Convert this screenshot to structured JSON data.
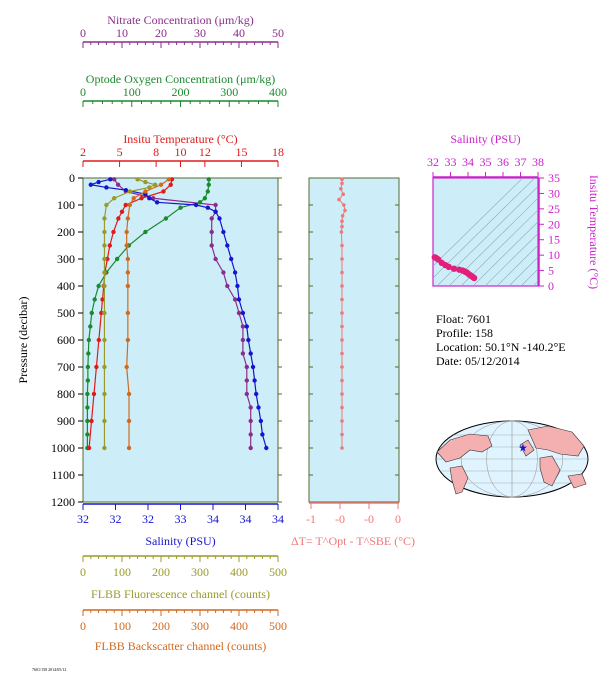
{
  "colors": {
    "panel_bg": "#cdeef8",
    "nitrate": "#8b2e8b",
    "oxygen": "#1b8a2e",
    "temperature": "#e01a1a",
    "salinity": "#1515d0",
    "fluorescence": "#9a9a2a",
    "backscatter": "#d2691e",
    "delta_t": "#f07878",
    "ts_axis": "#cc22cc",
    "ts_points": "#e0207a",
    "grid_dark": "#777777",
    "land": "#f4b0b0",
    "ocean": "#e0f4ff",
    "frame": "#556b2f"
  },
  "chart_data": [
    {
      "type": "line",
      "name": "main-profile",
      "ylabel": "Pressure (decibar)",
      "ylim": [
        1200,
        0
      ],
      "yticks": [
        "0",
        "100",
        "200",
        "300",
        "400",
        "500",
        "600",
        "700",
        "800",
        "900",
        "1000",
        "1100",
        "1200"
      ],
      "axes": {
        "nitrate": {
          "label": "Nitrate Concentration (μm/kg)",
          "range": [
            0,
            50
          ],
          "ticks": [
            "0",
            "10",
            "20",
            "30",
            "40",
            "50"
          ]
        },
        "oxygen": {
          "label": "Optode Oxygen Concentration (μm/kg)",
          "range": [
            0,
            400
          ],
          "ticks": [
            "0",
            "100",
            "200",
            "300",
            "400"
          ]
        },
        "temperature": {
          "label": "Insitu Temperature (°C)",
          "range": [
            2,
            18
          ],
          "ticks": [
            "2",
            "5",
            "8",
            "10",
            "12",
            "15",
            "18"
          ]
        },
        "salinity": {
          "label": "Salinity (PSU)",
          "range": [
            32,
            34.5
          ],
          "ticks": [
            "32",
            "32",
            "32",
            "33",
            "34",
            "34",
            "34"
          ]
        },
        "fluorescence": {
          "label": "FLBB Fluorescence channel (counts)",
          "range": [
            0,
            500
          ],
          "ticks": [
            "0",
            "100",
            "200",
            "300",
            "400",
            "500"
          ]
        },
        "backscatter": {
          "label": "FLBB Backscatter channel (counts)",
          "range": [
            0,
            500
          ],
          "ticks": [
            "0",
            "100",
            "200",
            "300",
            "400",
            "500"
          ]
        }
      },
      "series": [
        {
          "key": "nitrate",
          "pressure": [
            5,
            25,
            50,
            75,
            100,
            125,
            150,
            200,
            250,
            300,
            350,
            400,
            450,
            500,
            550,
            600,
            650,
            700,
            750,
            800,
            850,
            900,
            950,
            1000
          ],
          "values": [
            8,
            9,
            11,
            18,
            34,
            34,
            33,
            33,
            33,
            34,
            36,
            37,
            39,
            40,
            41,
            41,
            41,
            42,
            42,
            42,
            43,
            43,
            43,
            43
          ]
        },
        {
          "key": "oxygen",
          "pressure": [
            5,
            25,
            50,
            75,
            90,
            110,
            150,
            200,
            250,
            300,
            350,
            400,
            450,
            500,
            550,
            600,
            650,
            700,
            750,
            800,
            850,
            900,
            950,
            1000
          ],
          "values": [
            258,
            258,
            256,
            250,
            240,
            200,
            170,
            128,
            94,
            70,
            48,
            32,
            24,
            18,
            15,
            12,
            11,
            10,
            10,
            9,
            9,
            9,
            9,
            9
          ]
        },
        {
          "key": "temperature",
          "pressure": [
            5,
            25,
            50,
            75,
            100,
            125,
            150,
            200,
            250,
            300,
            350,
            400,
            450,
            500,
            600,
            700,
            800,
            900,
            1000
          ],
          "values": [
            9.3,
            9.2,
            8.6,
            6.8,
            5.5,
            5.2,
            4.9,
            4.5,
            4.2,
            4.0,
            3.8,
            3.7,
            3.6,
            3.5,
            3.3,
            3.1,
            2.9,
            2.7,
            2.5
          ]
        },
        {
          "key": "salinity",
          "pressure": [
            5,
            15,
            25,
            35,
            45,
            60,
            75,
            90,
            100,
            110,
            125,
            150,
            200,
            250,
            300,
            350,
            400,
            450,
            500,
            550,
            600,
            650,
            700,
            750,
            800,
            850,
            900,
            950,
            1000
          ],
          "values": [
            32.35,
            32.2,
            32.1,
            32.3,
            32.55,
            32.8,
            32.85,
            32.95,
            33.45,
            33.6,
            33.7,
            33.75,
            33.8,
            33.85,
            33.9,
            33.95,
            33.98,
            34.0,
            34.05,
            34.1,
            34.12,
            34.15,
            34.18,
            34.2,
            34.22,
            34.25,
            34.28,
            34.3,
            34.35
          ]
        },
        {
          "key": "fluorescence",
          "pressure": [
            5,
            15,
            25,
            35,
            50,
            75,
            100,
            150,
            200,
            250,
            300,
            350,
            400,
            500,
            600,
            700,
            800,
            900,
            1000
          ],
          "values": [
            140,
            160,
            185,
            170,
            120,
            80,
            60,
            55,
            55,
            55,
            55,
            55,
            55,
            55,
            55,
            55,
            55,
            55,
            55
          ]
        },
        {
          "key": "backscatter",
          "pressure": [
            5,
            25,
            50,
            75,
            100,
            150,
            200,
            250,
            300,
            350,
            400,
            500,
            600,
            700,
            800,
            900,
            1000
          ],
          "values": [
            220,
            200,
            160,
            130,
            120,
            115,
            112,
            112,
            115,
            115,
            115,
            115,
            115,
            112,
            118,
            118,
            118
          ]
        }
      ]
    },
    {
      "type": "line",
      "name": "delta-t",
      "xlabel": "ΔT= T^Opt - T^SBE (°C)",
      "xrange": [
        -1,
        0.5
      ],
      "xticks": [
        "-1",
        "-0",
        "-0",
        "0",
        "0"
      ],
      "series": [
        {
          "key": "delta_t",
          "pressure": [
            5,
            20,
            40,
            60,
            80,
            100,
            120,
            140,
            160,
            180,
            200,
            250,
            300,
            350,
            400,
            450,
            500,
            550,
            600,
            650,
            700,
            750,
            800,
            850,
            900,
            950,
            1000
          ],
          "values": [
            0,
            0,
            -0.02,
            0.02,
            -0.05,
            0.03,
            0.05,
            0.01,
            0,
            0,
            -0.01,
            0,
            0,
            0,
            0,
            0,
            0,
            0,
            0,
            0,
            0,
            0,
            0,
            0,
            0,
            0,
            0
          ]
        }
      ]
    },
    {
      "type": "scatter",
      "name": "ts-diagram",
      "title": "Salinity (PSU)",
      "xlabel": "Salinity (PSU)",
      "ylabel": "Insitu Temperature (°C)",
      "xrange": [
        32,
        38
      ],
      "yrange": [
        0,
        35
      ],
      "xticks": [
        "32",
        "33",
        "34",
        "35",
        "36",
        "37",
        "38"
      ],
      "yticks": [
        "0",
        "5",
        "10",
        "15",
        "20",
        "25",
        "30",
        "35"
      ],
      "series": [
        {
          "key": "ts",
          "salinity": [
            32.1,
            32.2,
            32.3,
            32.5,
            32.7,
            32.9,
            33.2,
            33.5,
            33.7,
            33.85,
            33.95,
            34.05,
            34.15,
            34.25,
            34.35
          ],
          "temperature": [
            9.3,
            9.0,
            8.6,
            7.5,
            6.8,
            6.2,
            5.6,
            5.3,
            5.0,
            4.6,
            4.3,
            3.8,
            3.4,
            3.0,
            2.6
          ]
        }
      ]
    }
  ],
  "float_info": {
    "float": "Float:  7601",
    "profile": "Profile:  158",
    "location": "Location:  50.1°N  -140.2°E",
    "date": "Date:  05/12/2014"
  },
  "map": {
    "marker_lat": 50.1,
    "marker_lon": -140.2
  },
  "footer_text": "7601/158 2014/05/12"
}
